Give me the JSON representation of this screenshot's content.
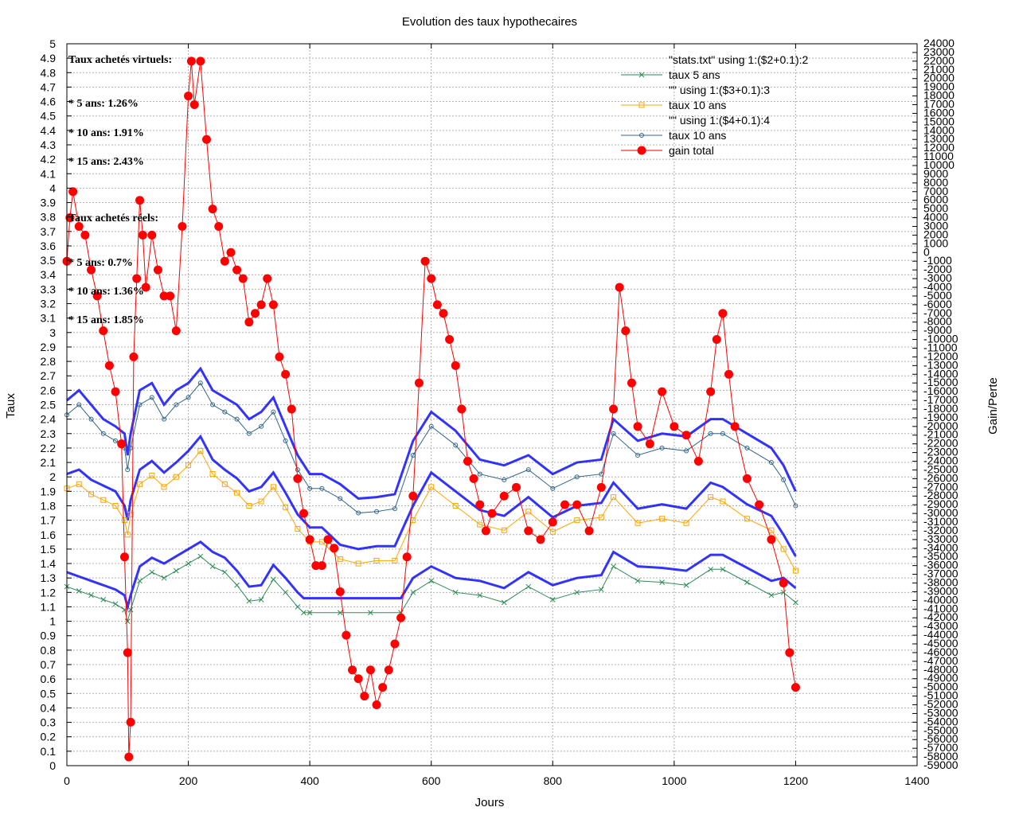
{
  "chart_data": {
    "type": "line",
    "title": "Evolution des taux hypothecaires",
    "xlabel": "Jours",
    "ylabel": "Taux",
    "y2label": "Gain/Perte",
    "xlim": [
      0,
      1400
    ],
    "ylim": [
      0,
      5
    ],
    "y2lim": [
      -59000,
      24000
    ],
    "x_ticks": [
      0,
      200,
      400,
      600,
      800,
      1000,
      1200,
      1400
    ],
    "y_tick_step": 0.1,
    "y2_tick_step": 1000,
    "grid": true,
    "legend_position": "top-right",
    "legend": [
      {
        "label": "\"stats.txt\" using 1:($2+0.1):2",
        "color": "#0000ff",
        "marker": "text"
      },
      {
        "label": "taux 5 ans",
        "color": "#2e8b57",
        "marker": "cross"
      },
      {
        "label": "\"\" using 1:($3+0.1):3",
        "color": "#0000ff",
        "marker": "text"
      },
      {
        "label": "taux 10 ans",
        "color": "#ffa500",
        "marker": "square"
      },
      {
        "label": "\"\" using 1:($4+0.1):4",
        "color": "#0000ff",
        "marker": "text"
      },
      {
        "label": "taux 10 ans",
        "color": "#336688",
        "marker": "circle"
      },
      {
        "label": "gain total",
        "color": "#ff0000",
        "marker": "filled-circle"
      }
    ],
    "annotations": [
      "Taux achetés virtuels:",
      "* 5 ans: 1.26%",
      "* 10 ans: 1.91%",
      "* 15 ans: 2.43%",
      "Taux achetés réels:",
      "* 5 ans: 0.7%",
      "* 10 ans: 1.36%",
      "* 15 ans: 1.85%"
    ],
    "series": [
      {
        "name": "taux 5 ans",
        "color": "#2e8b57",
        "x": [
          0,
          20,
          40,
          60,
          80,
          95,
          100,
          105,
          120,
          140,
          160,
          180,
          200,
          220,
          240,
          260,
          280,
          300,
          320,
          340,
          360,
          380,
          390,
          400,
          450,
          500,
          550,
          570,
          600,
          640,
          680,
          720,
          760,
          800,
          840,
          880,
          900,
          940,
          980,
          1020,
          1060,
          1080,
          1120,
          1160,
          1180,
          1200
        ],
        "y": [
          1.24,
          1.21,
          1.18,
          1.15,
          1.12,
          1.08,
          1.0,
          1.08,
          1.28,
          1.34,
          1.3,
          1.35,
          1.4,
          1.45,
          1.38,
          1.34,
          1.25,
          1.14,
          1.15,
          1.29,
          1.2,
          1.1,
          1.06,
          1.06,
          1.06,
          1.06,
          1.06,
          1.2,
          1.28,
          1.2,
          1.18,
          1.13,
          1.24,
          1.15,
          1.2,
          1.22,
          1.38,
          1.28,
          1.27,
          1.25,
          1.36,
          1.36,
          1.27,
          1.18,
          1.2,
          1.13
        ]
      },
      {
        "name": "taux 10 ans",
        "color": "#ffa500",
        "x": [
          0,
          20,
          40,
          60,
          80,
          95,
          100,
          105,
          120,
          140,
          160,
          180,
          200,
          220,
          240,
          260,
          280,
          300,
          320,
          340,
          360,
          380,
          400,
          420,
          450,
          480,
          510,
          540,
          570,
          600,
          640,
          680,
          720,
          760,
          800,
          840,
          880,
          900,
          940,
          980,
          1020,
          1060,
          1080,
          1120,
          1160,
          1180,
          1200
        ],
        "y": [
          1.92,
          1.95,
          1.88,
          1.84,
          1.8,
          1.7,
          1.6,
          1.74,
          1.95,
          2.01,
          1.93,
          2.0,
          2.08,
          2.18,
          2.02,
          1.95,
          1.89,
          1.8,
          1.83,
          1.93,
          1.79,
          1.64,
          1.55,
          1.55,
          1.43,
          1.4,
          1.42,
          1.42,
          1.7,
          1.93,
          1.8,
          1.67,
          1.63,
          1.76,
          1.62,
          1.7,
          1.72,
          1.86,
          1.68,
          1.71,
          1.68,
          1.86,
          1.83,
          1.71,
          1.63,
          1.5,
          1.35
        ]
      },
      {
        "name": "taux 10 ans",
        "color": "#336688",
        "x": [
          0,
          20,
          40,
          60,
          80,
          95,
          100,
          105,
          120,
          140,
          160,
          180,
          200,
          220,
          240,
          260,
          280,
          300,
          320,
          340,
          360,
          380,
          400,
          420,
          450,
          480,
          510,
          540,
          570,
          600,
          640,
          680,
          720,
          760,
          800,
          840,
          880,
          900,
          940,
          980,
          1020,
          1060,
          1080,
          1120,
          1160,
          1180,
          1200
        ],
        "y": [
          2.43,
          2.5,
          2.4,
          2.3,
          2.25,
          2.2,
          2.05,
          2.2,
          2.5,
          2.55,
          2.4,
          2.5,
          2.55,
          2.65,
          2.5,
          2.45,
          2.4,
          2.3,
          2.35,
          2.45,
          2.25,
          2.05,
          1.92,
          1.92,
          1.85,
          1.75,
          1.76,
          1.78,
          2.15,
          2.35,
          2.22,
          2.02,
          1.98,
          2.05,
          1.92,
          2.0,
          2.02,
          2.3,
          2.15,
          2.2,
          2.18,
          2.3,
          2.3,
          2.2,
          2.1,
          1.98,
          1.8
        ]
      },
      {
        "name": "gain total",
        "color": "#ff0000",
        "axis": "y2",
        "x": [
          0,
          5,
          10,
          20,
          30,
          40,
          50,
          60,
          70,
          80,
          90,
          95,
          100,
          102,
          105,
          110,
          115,
          120,
          125,
          130,
          140,
          150,
          160,
          170,
          180,
          190,
          200,
          205,
          210,
          220,
          230,
          240,
          250,
          260,
          270,
          280,
          290,
          300,
          310,
          320,
          330,
          340,
          350,
          360,
          370,
          380,
          390,
          400,
          410,
          420,
          430,
          440,
          450,
          460,
          470,
          480,
          490,
          500,
          510,
          520,
          530,
          540,
          550,
          560,
          570,
          580,
          590,
          600,
          610,
          620,
          630,
          640,
          650,
          660,
          670,
          680,
          690,
          700,
          720,
          740,
          760,
          780,
          800,
          820,
          840,
          860,
          880,
          900,
          910,
          920,
          930,
          940,
          960,
          980,
          1000,
          1020,
          1040,
          1060,
          1070,
          1080,
          1090,
          1100,
          1120,
          1140,
          1160,
          1180,
          1190,
          1200
        ],
        "y": [
          -1000,
          4000,
          7000,
          3000,
          2000,
          -2000,
          -5000,
          -9000,
          -13000,
          -16000,
          -22000,
          -35000,
          -46000,
          -58000,
          -54000,
          -12000,
          -3000,
          6000,
          2000,
          -4000,
          2000,
          -2000,
          -5000,
          -5000,
          -9000,
          3000,
          18000,
          22000,
          17000,
          22000,
          13000,
          5000,
          3000,
          -1000,
          0,
          -2000,
          -3000,
          -8000,
          -7000,
          -6000,
          -3000,
          -6000,
          -12000,
          -14000,
          -18000,
          -26000,
          -30000,
          -33000,
          -36000,
          -36000,
          -33000,
          -34000,
          -39000,
          -44000,
          -48000,
          -49000,
          -51000,
          -48000,
          -52000,
          -50000,
          -48000,
          -45000,
          -42000,
          -35000,
          -28000,
          -15000,
          -1000,
          -3000,
          -6000,
          -7000,
          -10000,
          -13000,
          -18000,
          -24000,
          -26000,
          -29000,
          -32000,
          -30000,
          -28000,
          -27000,
          -32000,
          -33000,
          -31000,
          -29000,
          -29000,
          -32000,
          -27000,
          -18000,
          -4000,
          -9000,
          -15000,
          -20000,
          -22000,
          -16000,
          -20000,
          -21000,
          -24000,
          -16000,
          -10000,
          -7000,
          -14000,
          -20000,
          -26000,
          -29000,
          -33000,
          -38000,
          -46000,
          -50000
        ]
      },
      {
        "name": "\"stats.txt\" using 1:($2+0.1):2",
        "color": "#0000ff",
        "offset_of": "taux 5 ans",
        "offset": 0.1
      },
      {
        "name": "\"\" using 1:($3+0.1):3",
        "color": "#0000ff",
        "offset_of": 1,
        "offset": 0.1
      },
      {
        "name": "\"\" using 1:($4+0.1):4",
        "color": "#0000ff",
        "offset_of": 2,
        "offset": 0.1
      }
    ]
  }
}
